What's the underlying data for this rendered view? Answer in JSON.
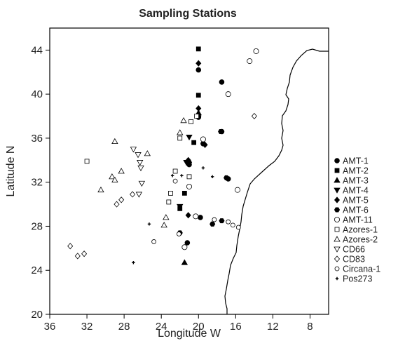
{
  "chart_data": {
    "type": "scatter",
    "title": "Sampling Stations",
    "xlabel": "Longitude W",
    "ylabel": "Latitude N",
    "xlim": [
      36,
      6
    ],
    "ylim": [
      20,
      46
    ],
    "x_ticks": [
      36,
      32,
      28,
      24,
      20,
      16,
      12,
      8
    ],
    "y_ticks": [
      20,
      24,
      28,
      32,
      36,
      40,
      44
    ],
    "legend_position": "right",
    "series": [
      {
        "name": "AMT-1",
        "marker": "circle-filled",
        "points": [
          [
            20,
            42.2
          ],
          [
            20,
            37.9
          ],
          [
            17.5,
            41.1
          ],
          [
            17.5,
            36.6
          ],
          [
            19.5,
            35.5
          ],
          [
            21,
            33.6
          ],
          [
            16.8,
            32.3
          ],
          [
            21.2,
            26.5
          ],
          [
            19.8,
            28.8
          ]
        ]
      },
      {
        "name": "AMT-2",
        "marker": "square-filled",
        "points": [
          [
            20,
            44.1
          ],
          [
            20,
            39.9
          ],
          [
            20.5,
            35.6
          ],
          [
            21.5,
            31
          ],
          [
            22,
            29.6
          ]
        ]
      },
      {
        "name": "AMT-3",
        "marker": "triangle-up-filled",
        "points": [
          [
            21.5,
            24.7
          ],
          [
            20,
            38.3
          ]
        ]
      },
      {
        "name": "AMT-4",
        "marker": "triangle-down-filled",
        "points": [
          [
            21,
            36.1
          ],
          [
            21.3,
            33.8
          ],
          [
            22,
            29.8
          ]
        ]
      },
      {
        "name": "AMT-5",
        "marker": "diamond-filled",
        "points": [
          [
            20,
            42.8
          ],
          [
            20,
            38.7
          ],
          [
            21.1,
            34
          ],
          [
            19.3,
            35.4
          ],
          [
            21.1,
            29
          ]
        ]
      },
      {
        "name": "AMT-6",
        "marker": "hexagon-filled",
        "points": [
          [
            20,
            38
          ],
          [
            17.6,
            36.6
          ],
          [
            17,
            32.4
          ],
          [
            21,
            33.8
          ],
          [
            22,
            27.4
          ],
          [
            17.5,
            28.5
          ],
          [
            18.5,
            28.2
          ]
        ]
      },
      {
        "name": "AMT-11",
        "marker": "circle-open",
        "points": [
          [
            13.8,
            43.9
          ],
          [
            14.5,
            43
          ],
          [
            16.8,
            40
          ],
          [
            21,
            31.6
          ],
          [
            19.5,
            35.9
          ],
          [
            20.3,
            28.9
          ],
          [
            15.8,
            31.3
          ],
          [
            21.5,
            26.1
          ]
        ]
      },
      {
        "name": "Azores-1",
        "marker": "square-open",
        "points": [
          [
            32,
            33.9
          ],
          [
            22,
            36
          ],
          [
            20.2,
            38
          ],
          [
            20.8,
            37.5
          ],
          [
            22.5,
            33
          ],
          [
            23,
            31
          ],
          [
            23.2,
            30.2
          ],
          [
            21,
            32.5
          ]
        ]
      },
      {
        "name": "Azores-2",
        "marker": "triangle-up-open",
        "points": [
          [
            29,
            35.7
          ],
          [
            28.3,
            33
          ],
          [
            29.3,
            32.5
          ],
          [
            29,
            32.2
          ],
          [
            30.5,
            31.3
          ],
          [
            25.5,
            34.6
          ],
          [
            21.6,
            37.6
          ],
          [
            22,
            36.5
          ],
          [
            23.5,
            28.8
          ],
          [
            23.7,
            28.1
          ]
        ]
      },
      {
        "name": "CD66",
        "marker": "triangle-down-open",
        "points": [
          [
            27,
            35
          ],
          [
            26.5,
            34.5
          ],
          [
            26.3,
            33.8
          ],
          [
            26.2,
            33.3
          ],
          [
            26.1,
            31.9
          ],
          [
            26.4,
            30.9
          ]
        ]
      },
      {
        "name": "CD83",
        "marker": "diamond-open",
        "points": [
          [
            33.8,
            26.2
          ],
          [
            33,
            25.3
          ],
          [
            32.3,
            25.5
          ],
          [
            28.3,
            30.4
          ],
          [
            28.8,
            30
          ],
          [
            27.1,
            30.9
          ],
          [
            14,
            38
          ]
        ]
      },
      {
        "name": "Circana-1",
        "marker": "circle-small-open",
        "points": [
          [
            24.8,
            26.6
          ],
          [
            22.1,
            27.3
          ],
          [
            22.5,
            32.1
          ],
          [
            16.8,
            28.4
          ],
          [
            16.3,
            28.1
          ],
          [
            15.7,
            27.9
          ],
          [
            18.3,
            28.6
          ]
        ]
      },
      {
        "name": "Pos273",
        "marker": "plus",
        "points": [
          [
            27,
            24.7
          ],
          [
            25.3,
            28.2
          ],
          [
            19.5,
            33.3
          ],
          [
            18.5,
            32.5
          ],
          [
            22.8,
            32.6
          ],
          [
            21.8,
            32.6
          ]
        ]
      }
    ]
  }
}
